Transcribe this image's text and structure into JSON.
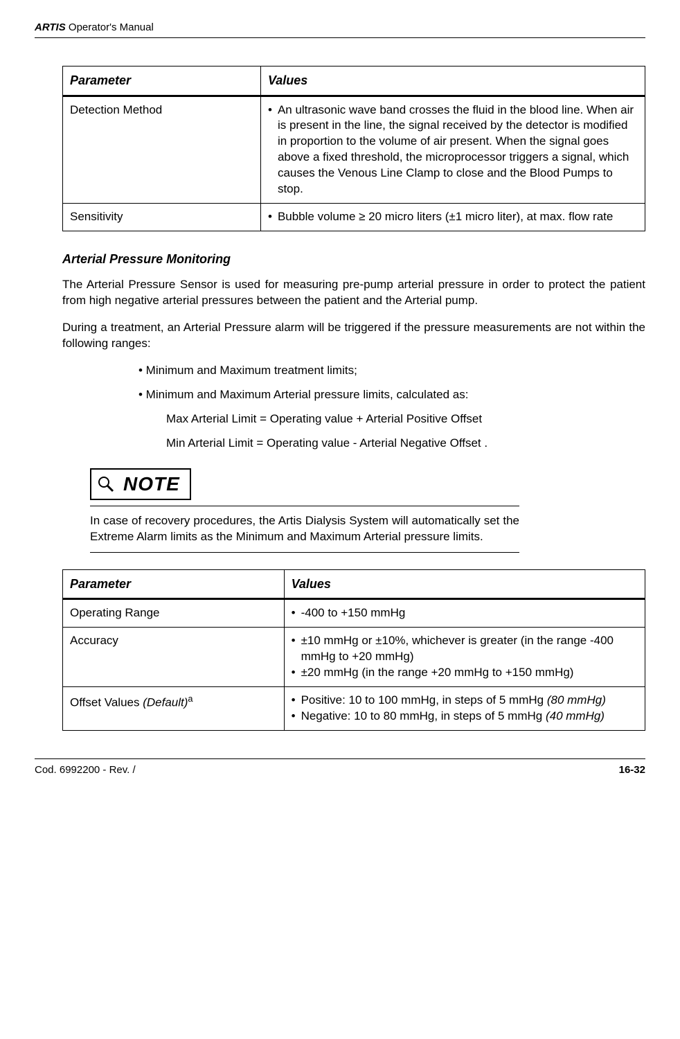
{
  "header": {
    "product": "ARTIS",
    "doc_title": "Operator's Manual"
  },
  "table1": {
    "headers": {
      "param": "Parameter",
      "values": "Values"
    },
    "rows": [
      {
        "param": "Detection Method",
        "value": "An ultrasonic wave band crosses the fluid in the blood line.  When air is present in the line, the signal received by the detector is modified in proportion to the volume of air present.  When the signal goes above a fixed threshold, the microprocessor triggers a signal, which causes the Venous Line Clamp to close and the Blood Pumps to stop."
      },
      {
        "param": "Sensitivity",
        "value": "Bubble volume ≥ 20 micro liters (±1 micro liter), at max. flow rate"
      }
    ]
  },
  "section1": {
    "heading": "Arterial Pressure Monitoring",
    "para1": "The Arterial Pressure Sensor is used for measuring pre-pump arterial pressure in order to protect the patient from high negative arterial pressures between the patient and the Arterial pump.",
    "para2": "During a treatment, an Arterial Pressure alarm will be triggered if the pressure measurements are not within the following ranges:",
    "bullet1": "• Minimum and Maximum treatment limits;",
    "bullet2": "• Minimum and Maximum Arterial pressure limits, calculated as:",
    "sub1": "Max Arterial Limit = Operating value + Arterial Positive Offset",
    "sub2": "Min Arterial Limit = Operating value - Arterial Negative Offset  ."
  },
  "note": {
    "label": "NOTE",
    "text": "In case of recovery procedures, the Artis Dialysis System will automatically set the Extreme Alarm limits as the Minimum and Maximum Arterial pressure limits."
  },
  "table2": {
    "headers": {
      "param": "Parameter",
      "values": "Values"
    },
    "rows": [
      {
        "param": "Operating Range",
        "values": [
          "-400 to +150 mmHg"
        ]
      },
      {
        "param": "Accuracy",
        "values": [
          "±10 mmHg or ±10%, whichever is greater (in the range -400 mmHg to +20 mmHg)",
          "±20 mmHg (in the range +20 mmHg to +150 mmHg)"
        ]
      },
      {
        "param_html": "Offset Values <span style=\"font-style:italic\">(Default)</span><span class=\"sup\">a</span>",
        "values_html": [
          "Positive: 10 to 100 mmHg, in steps of 5 mmHg  <span style=\"font-style:italic\">(80 mmHg)</span>",
          "Negative: 10 to 80 mmHg, in steps of 5 mmHg <span style=\"font-style:italic\">(40 mmHg)</span>"
        ]
      }
    ]
  },
  "footer": {
    "left": "Cod. 6992200 - Rev. /",
    "right": "16-32"
  }
}
